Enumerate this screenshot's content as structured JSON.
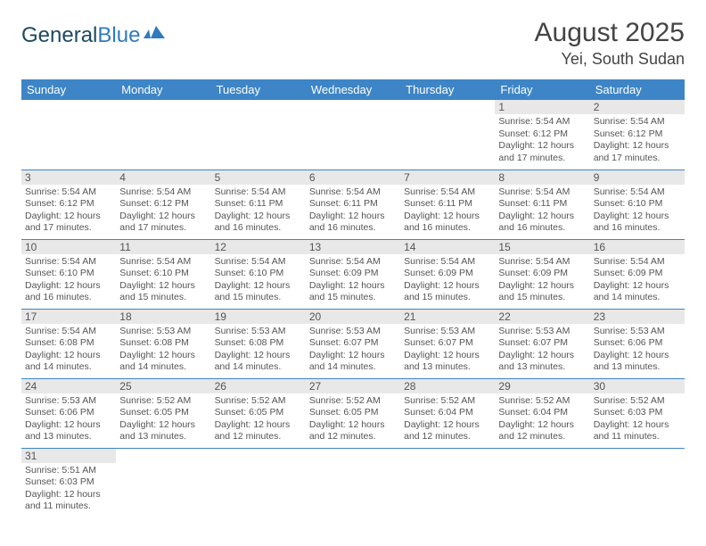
{
  "logo": {
    "part1": "General",
    "part2": "Blue"
  },
  "title": "August 2025",
  "location": "Yei, South Sudan",
  "colors": {
    "header_bg": "#3d85c6",
    "header_text": "#ffffff",
    "daynum_bg": "#e8e8e8",
    "border": "#3d85c6",
    "text": "#555555",
    "logo1": "#1d4861",
    "logo2": "#2f7bbf"
  },
  "weekdays": [
    "Sunday",
    "Monday",
    "Tuesday",
    "Wednesday",
    "Thursday",
    "Friday",
    "Saturday"
  ],
  "weeks": [
    [
      null,
      null,
      null,
      null,
      null,
      {
        "n": "1",
        "sr": "5:54 AM",
        "ss": "6:12 PM",
        "dl": "12 hours and 17 minutes."
      },
      {
        "n": "2",
        "sr": "5:54 AM",
        "ss": "6:12 PM",
        "dl": "12 hours and 17 minutes."
      }
    ],
    [
      {
        "n": "3",
        "sr": "5:54 AM",
        "ss": "6:12 PM",
        "dl": "12 hours and 17 minutes."
      },
      {
        "n": "4",
        "sr": "5:54 AM",
        "ss": "6:12 PM",
        "dl": "12 hours and 17 minutes."
      },
      {
        "n": "5",
        "sr": "5:54 AM",
        "ss": "6:11 PM",
        "dl": "12 hours and 16 minutes."
      },
      {
        "n": "6",
        "sr": "5:54 AM",
        "ss": "6:11 PM",
        "dl": "12 hours and 16 minutes."
      },
      {
        "n": "7",
        "sr": "5:54 AM",
        "ss": "6:11 PM",
        "dl": "12 hours and 16 minutes."
      },
      {
        "n": "8",
        "sr": "5:54 AM",
        "ss": "6:11 PM",
        "dl": "12 hours and 16 minutes."
      },
      {
        "n": "9",
        "sr": "5:54 AM",
        "ss": "6:10 PM",
        "dl": "12 hours and 16 minutes."
      }
    ],
    [
      {
        "n": "10",
        "sr": "5:54 AM",
        "ss": "6:10 PM",
        "dl": "12 hours and 16 minutes."
      },
      {
        "n": "11",
        "sr": "5:54 AM",
        "ss": "6:10 PM",
        "dl": "12 hours and 15 minutes."
      },
      {
        "n": "12",
        "sr": "5:54 AM",
        "ss": "6:10 PM",
        "dl": "12 hours and 15 minutes."
      },
      {
        "n": "13",
        "sr": "5:54 AM",
        "ss": "6:09 PM",
        "dl": "12 hours and 15 minutes."
      },
      {
        "n": "14",
        "sr": "5:54 AM",
        "ss": "6:09 PM",
        "dl": "12 hours and 15 minutes."
      },
      {
        "n": "15",
        "sr": "5:54 AM",
        "ss": "6:09 PM",
        "dl": "12 hours and 15 minutes."
      },
      {
        "n": "16",
        "sr": "5:54 AM",
        "ss": "6:09 PM",
        "dl": "12 hours and 14 minutes."
      }
    ],
    [
      {
        "n": "17",
        "sr": "5:54 AM",
        "ss": "6:08 PM",
        "dl": "12 hours and 14 minutes."
      },
      {
        "n": "18",
        "sr": "5:53 AM",
        "ss": "6:08 PM",
        "dl": "12 hours and 14 minutes."
      },
      {
        "n": "19",
        "sr": "5:53 AM",
        "ss": "6:08 PM",
        "dl": "12 hours and 14 minutes."
      },
      {
        "n": "20",
        "sr": "5:53 AM",
        "ss": "6:07 PM",
        "dl": "12 hours and 14 minutes."
      },
      {
        "n": "21",
        "sr": "5:53 AM",
        "ss": "6:07 PM",
        "dl": "12 hours and 13 minutes."
      },
      {
        "n": "22",
        "sr": "5:53 AM",
        "ss": "6:07 PM",
        "dl": "12 hours and 13 minutes."
      },
      {
        "n": "23",
        "sr": "5:53 AM",
        "ss": "6:06 PM",
        "dl": "12 hours and 13 minutes."
      }
    ],
    [
      {
        "n": "24",
        "sr": "5:53 AM",
        "ss": "6:06 PM",
        "dl": "12 hours and 13 minutes."
      },
      {
        "n": "25",
        "sr": "5:52 AM",
        "ss": "6:05 PM",
        "dl": "12 hours and 13 minutes."
      },
      {
        "n": "26",
        "sr": "5:52 AM",
        "ss": "6:05 PM",
        "dl": "12 hours and 12 minutes."
      },
      {
        "n": "27",
        "sr": "5:52 AM",
        "ss": "6:05 PM",
        "dl": "12 hours and 12 minutes."
      },
      {
        "n": "28",
        "sr": "5:52 AM",
        "ss": "6:04 PM",
        "dl": "12 hours and 12 minutes."
      },
      {
        "n": "29",
        "sr": "5:52 AM",
        "ss": "6:04 PM",
        "dl": "12 hours and 12 minutes."
      },
      {
        "n": "30",
        "sr": "5:52 AM",
        "ss": "6:03 PM",
        "dl": "12 hours and 11 minutes."
      }
    ],
    [
      {
        "n": "31",
        "sr": "5:51 AM",
        "ss": "6:03 PM",
        "dl": "12 hours and 11 minutes."
      },
      null,
      null,
      null,
      null,
      null,
      null
    ]
  ],
  "labels": {
    "sunrise": "Sunrise:",
    "sunset": "Sunset:",
    "daylight": "Daylight:"
  }
}
